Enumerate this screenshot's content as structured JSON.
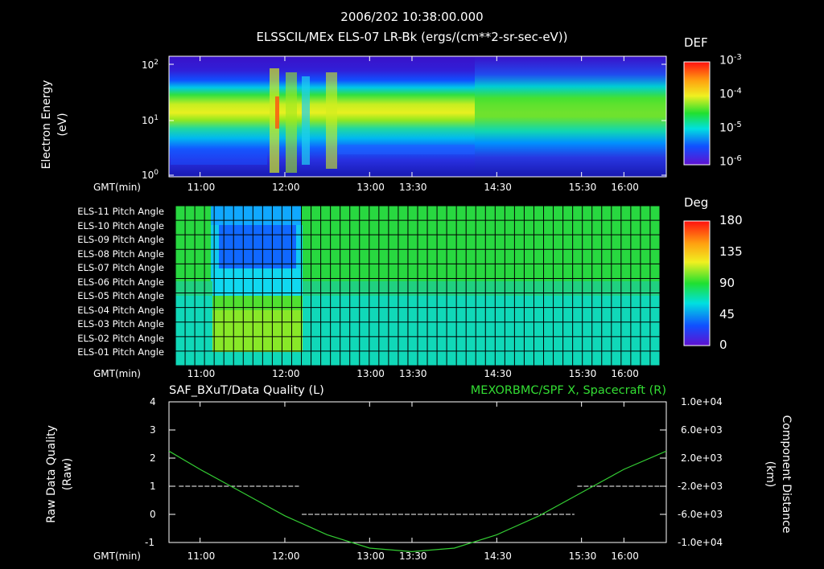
{
  "header": {
    "time": "2006/202 10:38:00.000",
    "title": "ELSSCIL/MEx ELS-07 LR-Bk  (ergs/(cm**2-sr-sec-eV))"
  },
  "panel1": {
    "ylabel_line1": "Electron Energy",
    "ylabel_line2": "(eV)",
    "yticks": [
      {
        "base": "10",
        "exp": "2"
      },
      {
        "base": "10",
        "exp": "1"
      },
      {
        "base": "10",
        "exp": "0"
      }
    ],
    "colorbar_title": "DEF",
    "colorbar_ticks": [
      {
        "base": "10",
        "exp": "-3"
      },
      {
        "base": "10",
        "exp": "-4"
      },
      {
        "base": "10",
        "exp": "-5"
      },
      {
        "base": "10",
        "exp": "-6"
      }
    ]
  },
  "panel2": {
    "rows": [
      "ELS-11 Pitch Angle",
      "ELS-10 Pitch Angle",
      "ELS-09 Pitch Angle",
      "ELS-08 Pitch Angle",
      "ELS-07 Pitch Angle",
      "ELS-06 Pitch Angle",
      "ELS-05 Pitch Angle",
      "ELS-04 Pitch Angle",
      "ELS-03 Pitch Angle",
      "ELS-02 Pitch Angle",
      "ELS-01 Pitch Angle"
    ],
    "colorbar_title": "Deg",
    "colorbar_ticks": [
      "180",
      "135",
      "90",
      "45",
      "0"
    ]
  },
  "panel3": {
    "left_title": "SAF_BXuT/Data Quality (L)",
    "right_title": "MEXORBMC/SPF X, Spacecraft (R)",
    "left_ylabel_line1": "Raw Data Quality",
    "left_ylabel_line2": "(Raw)",
    "right_ylabel_line1": "Component Distance",
    "right_ylabel_line2": "(km)",
    "left_ticks": [
      "4",
      "3",
      "2",
      "1",
      "0",
      "-1"
    ],
    "right_ticks": [
      "1.0e+04",
      "6.0e+03",
      "2.0e+03",
      "-2.0e+03",
      "-6.0e+03",
      "-1.0e+04"
    ]
  },
  "time_axis": {
    "label": "GMT(min)",
    "ticks": [
      "11:00",
      "12:00",
      "13:00",
      "13:30",
      "14:30",
      "15:30",
      "16:00"
    ]
  },
  "colors": {
    "background": "#000000",
    "text": "#ffffff",
    "spacecraft_line": "#33cc33",
    "right_title": "#33dd33"
  },
  "chart_data": [
    {
      "type": "heatmap",
      "title": "ELSSCIL/MEx ELS-07 LR-Bk  (ergs/(cm**2-sr-sec-eV))",
      "xlabel": "GMT(min)",
      "ylabel": "Electron Energy (eV)",
      "yscale": "log",
      "ylim": [
        1,
        150
      ],
      "colorbar": {
        "label": "DEF",
        "range": [
          1e-06,
          0.001
        ],
        "scale": "log"
      },
      "time_range": [
        "10:38",
        "16:30"
      ],
      "features": [
        {
          "time_range": [
            "11:50",
            "12:35"
          ],
          "description": "enhanced flux bursts at 10-60 eV"
        },
        {
          "time_range": [
            "14:20",
            "16:20"
          ],
          "description": "broadened band 5-60 eV"
        }
      ]
    },
    {
      "type": "heatmap",
      "xlabel": "GMT(min)",
      "rows": [
        "ELS-11",
        "ELS-10",
        "ELS-09",
        "ELS-08",
        "ELS-07",
        "ELS-06",
        "ELS-05",
        "ELS-04",
        "ELS-03",
        "ELS-02",
        "ELS-01"
      ],
      "colorbar": {
        "label": "Deg",
        "range": [
          0,
          180
        ]
      },
      "segments": [
        {
          "time_range": [
            "10:38",
            "11:07"
          ],
          "pitch_angles_deg": [
            98,
            98,
            98,
            98,
            98,
            98,
            90,
            82,
            82,
            78,
            76
          ]
        },
        {
          "time_range": [
            "11:07",
            "12:10"
          ],
          "pitch_angles_deg": [
            55,
            40,
            28,
            28,
            28,
            48,
            82,
            96,
            103,
            103,
            96
          ]
        },
        {
          "time_range": [
            "12:10",
            "16:30"
          ],
          "pitch_angles_deg": [
            98,
            98,
            98,
            98,
            98,
            96,
            90,
            82,
            80,
            78,
            76
          ]
        }
      ]
    },
    {
      "type": "line",
      "xlabel": "GMT(min)",
      "series": [
        {
          "name": "SAF_BXuT/Data Quality (L)",
          "axis": "left",
          "ylim": [
            -1,
            4
          ],
          "x": [
            "10:45",
            "12:10",
            "12:12",
            "15:25",
            "15:27",
            "16:25"
          ],
          "y": [
            1,
            1,
            0,
            0,
            1,
            1
          ]
        },
        {
          "name": "MEXORBMC/SPF X, Spacecraft (R)",
          "axis": "right",
          "ylim": [
            -10000,
            10000
          ],
          "x": [
            "10:38",
            "11:00",
            "11:30",
            "12:00",
            "12:30",
            "13:00",
            "13:30",
            "14:00",
            "14:30",
            "15:00",
            "15:30",
            "16:00",
            "16:30"
          ],
          "y": [
            3000,
            400,
            -2900,
            -6200,
            -8900,
            -10800,
            -11300,
            -10800,
            -8900,
            -6200,
            -2900,
            400,
            3000
          ]
        }
      ]
    }
  ]
}
